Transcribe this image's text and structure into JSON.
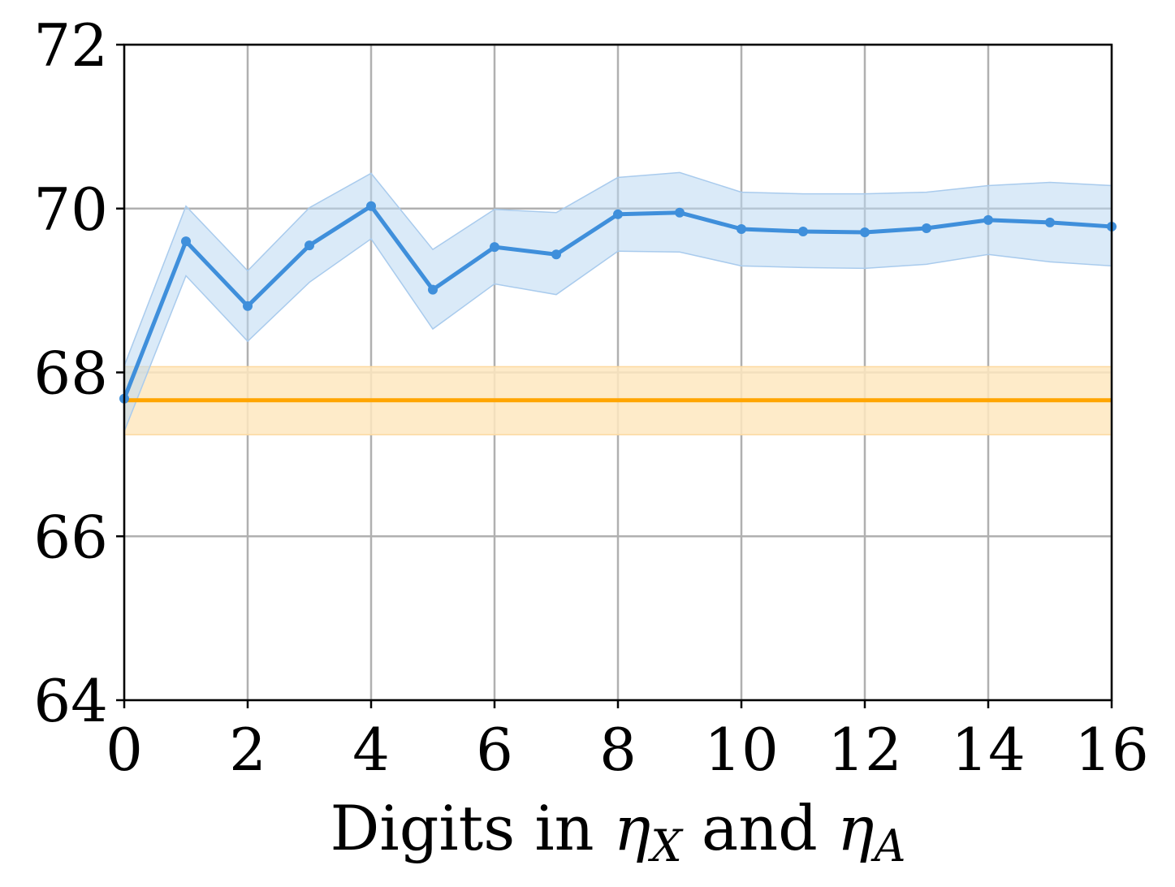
{
  "chart_data": {
    "type": "line",
    "xlabel_parts": {
      "pre": "Digits in ",
      "var1": "η",
      "sub1": "X",
      "mid": " and ",
      "var2": "η",
      "sub2": "A"
    },
    "ylabel": "",
    "xlim": [
      0,
      16
    ],
    "ylim": [
      64,
      72
    ],
    "xticks": [
      0,
      2,
      4,
      6,
      8,
      10,
      12,
      14,
      16
    ],
    "yticks": [
      64,
      66,
      68,
      70,
      72
    ],
    "grid": true,
    "series": [
      {
        "color": "#3f8fdb",
        "band_color": "#bcd8f3",
        "x": [
          0,
          1,
          2,
          3,
          4,
          5,
          6,
          7,
          8,
          9,
          10,
          11,
          12,
          13,
          14,
          15,
          16
        ],
        "y": [
          67.68,
          69.6,
          68.81,
          69.55,
          70.03,
          69.01,
          69.53,
          69.44,
          69.93,
          69.95,
          69.75,
          69.72,
          69.71,
          69.76,
          69.86,
          69.83,
          69.78
        ],
        "lower": [
          67.28,
          69.18,
          68.38,
          69.1,
          69.63,
          68.53,
          69.08,
          68.95,
          69.48,
          69.47,
          69.3,
          69.28,
          69.27,
          69.32,
          69.44,
          69.35,
          69.3
        ],
        "upper": [
          68.08,
          70.03,
          69.24,
          70.01,
          70.43,
          69.5,
          69.99,
          69.95,
          70.38,
          70.44,
          70.2,
          70.18,
          70.18,
          70.2,
          70.28,
          70.32,
          70.28
        ]
      }
    ],
    "reference_line": {
      "color": "#ffa500",
      "band_color": "#fee8c0",
      "y": 67.66,
      "lower": 67.24,
      "upper": 68.07
    }
  }
}
